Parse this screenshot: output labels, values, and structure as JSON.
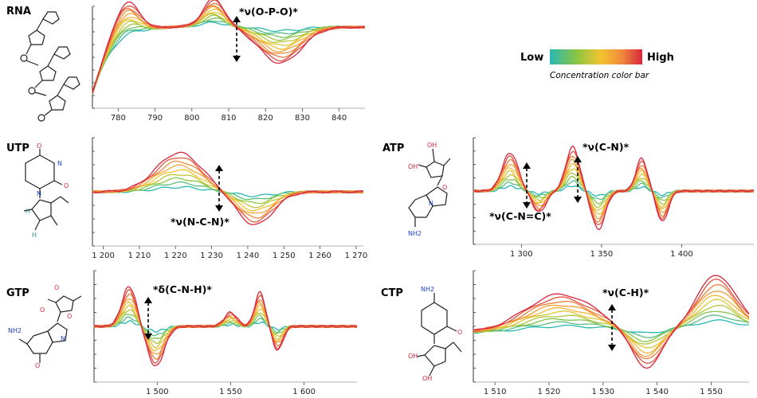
{
  "legend": {
    "low_label": "Low",
    "high_label": "High",
    "caption": "Concentration color bar",
    "colors": [
      "#2ab7b2",
      "#8dc63f",
      "#f4c430",
      "#f08a3c",
      "#d7263d"
    ]
  },
  "molecule_atoms": {
    "oxygen": "O",
    "hydrogen": "H",
    "nitrogen": "N",
    "hydroxyl": "OH",
    "amine": "NH2"
  },
  "chart_data": [
    {
      "name": "rna",
      "type": "line",
      "label": "RNA",
      "annotation": "*ν(O-P-O)*",
      "x_range": [
        773,
        847
      ],
      "ticks": [
        780,
        790,
        800,
        810,
        820,
        830,
        840
      ],
      "tick_labels": [
        "780",
        "790",
        "800",
        "810",
        "820",
        "830",
        "840"
      ],
      "series_count": 12,
      "peaks": [
        {
          "x": 782,
          "amp": 1.0,
          "w": 5
        },
        {
          "x": 806,
          "amp": 0.75,
          "w": 4
        },
        {
          "x": 824,
          "amp": -1.0,
          "w": 8
        }
      ]
    },
    {
      "name": "utp",
      "type": "line",
      "label": "UTP",
      "annotation": "*ν(N-C-N)*",
      "x_range": [
        1197,
        1272
      ],
      "ticks": [
        1200,
        1210,
        1220,
        1230,
        1240,
        1250,
        1260,
        1270
      ],
      "tick_labels": [
        "1 200",
        "1 210",
        "1 220",
        "1 230",
        "1 240",
        "1 250",
        "1 260",
        "1 270"
      ],
      "series_count": 9,
      "peaks": [
        {
          "x": 1221,
          "amp": 1.0,
          "w": 9
        },
        {
          "x": 1242,
          "amp": -0.85,
          "w": 7
        }
      ]
    },
    {
      "name": "atp",
      "type": "line",
      "label": "ATP",
      "annotation_1": "*ν(C-N)*",
      "annotation_2": "*ν(C-N=C)*",
      "x_range": [
        1270,
        1445
      ],
      "ticks": [
        1300,
        1350,
        1400
      ],
      "tick_labels": [
        "1 300",
        "1 350",
        "1 400"
      ],
      "series_count": 10,
      "peaks": [
        {
          "x": 1293,
          "amp": 1.0,
          "w": 7
        },
        {
          "x": 1311,
          "amp": -0.55,
          "w": 6
        },
        {
          "x": 1332,
          "amp": 1.15,
          "w": 6
        },
        {
          "x": 1348,
          "amp": -1.0,
          "w": 6
        },
        {
          "x": 1375,
          "amp": 0.85,
          "w": 5
        },
        {
          "x": 1388,
          "amp": -0.8,
          "w": 5
        }
      ]
    },
    {
      "name": "gtp",
      "type": "line",
      "label": "GTP",
      "annotation": "*δ(C-N-H)*",
      "x_range": [
        1457,
        1636
      ],
      "ticks": [
        1500,
        1550,
        1600
      ],
      "tick_labels": [
        "1 500",
        "1 550",
        "1 600"
      ],
      "series_count": 10,
      "peaks": [
        {
          "x": 1481,
          "amp": 1.0,
          "w": 7
        },
        {
          "x": 1499,
          "amp": -1.0,
          "w": 8
        },
        {
          "x": 1550,
          "amp": 0.35,
          "w": 6
        },
        {
          "x": 1570,
          "amp": 0.85,
          "w": 5
        },
        {
          "x": 1582,
          "amp": -0.6,
          "w": 5
        }
      ]
    },
    {
      "name": "ctp",
      "type": "line",
      "label": "CTP",
      "annotation": "*ν(C-H)*",
      "x_range": [
        1506,
        1557
      ],
      "ticks": [
        1510,
        1520,
        1530,
        1540,
        1550
      ],
      "tick_labels": [
        "1 510",
        "1 520",
        "1 530",
        "1 540",
        "1 550"
      ],
      "series_count": 10,
      "peaks": [
        {
          "x": 1522,
          "amp": 0.9,
          "w": 9
        },
        {
          "x": 1538,
          "amp": -1.0,
          "w": 4
        },
        {
          "x": 1551,
          "amp": 1.3,
          "w": 5
        }
      ]
    }
  ]
}
